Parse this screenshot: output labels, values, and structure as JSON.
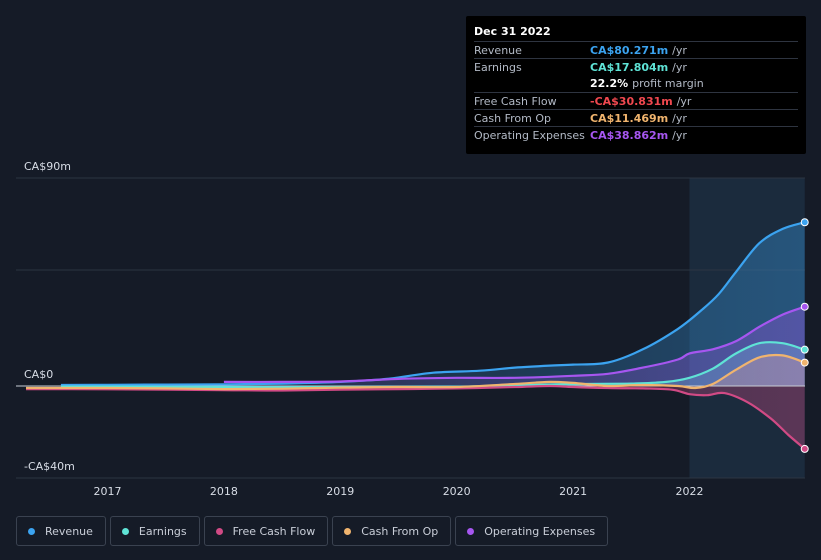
{
  "tooltip": {
    "date": "Dec 31 2022",
    "rows": [
      {
        "label": "Revenue",
        "value": "CA$80.271m",
        "unit": "/yr",
        "color": "#3ba3f0"
      },
      {
        "label": "Earnings",
        "value": "CA$17.804m",
        "unit": "/yr",
        "color": "#5fe3d6"
      },
      {
        "label": "",
        "value": "22.2%",
        "unit": "profit margin",
        "color": "#ffffff"
      },
      {
        "label": "Free Cash Flow",
        "value": "-CA$30.831m",
        "unit": "/yr",
        "color": "#f0484f"
      },
      {
        "label": "Cash From Op",
        "value": "CA$11.469m",
        "unit": "/yr",
        "color": "#f0b46e"
      },
      {
        "label": "Operating Expenses",
        "value": "CA$38.862m",
        "unit": "/yr",
        "color": "#a656f0"
      }
    ]
  },
  "legend": [
    {
      "label": "Revenue",
      "color": "#3ba3f0"
    },
    {
      "label": "Earnings",
      "color": "#5fe3d6"
    },
    {
      "label": "Free Cash Flow",
      "color": "#d14a85"
    },
    {
      "label": "Cash From Op",
      "color": "#f0b46e"
    },
    {
      "label": "Operating Expenses",
      "color": "#a656f0"
    }
  ],
  "chart_data": {
    "type": "area",
    "y_tick_labels": [
      "CA$90m",
      "CA$0",
      "-CA$40m"
    ],
    "ylim": [
      -40,
      90
    ],
    "xlim": [
      2016.3,
      2022.99
    ],
    "x_ticks": [
      2017,
      2018,
      2019,
      2020,
      2021,
      2022
    ],
    "x_tick_labels": [
      "2017",
      "2018",
      "2019",
      "2020",
      "2021",
      "2022"
    ],
    "highlight_range": [
      2022.0,
      2022.99
    ],
    "grid": true,
    "series": [
      {
        "name": "Revenue",
        "color": "#3ba3f0",
        "x": [
          2016.6,
          2017.0,
          2017.5,
          2018.0,
          2018.5,
          2019.0,
          2019.4,
          2019.8,
          2020.2,
          2020.5,
          2020.8,
          2021.0,
          2021.3,
          2021.6,
          2021.9,
          2022.1,
          2022.25,
          2022.4,
          2022.6,
          2022.8,
          2022.99
        ],
        "values": [
          0.5,
          0.6,
          0.7,
          0.8,
          1.2,
          2.0,
          3.5,
          6.5,
          7.5,
          9.0,
          10.0,
          10.5,
          11.5,
          18.0,
          28.0,
          37.0,
          45.0,
          56.0,
          70.0,
          77.0,
          80.271
        ]
      },
      {
        "name": "Earnings",
        "color": "#5fe3d6",
        "x": [
          2016.6,
          2017.0,
          2017.5,
          2018.0,
          2018.5,
          2019.0,
          2019.5,
          2020.0,
          2020.5,
          2021.0,
          2021.5,
          2021.8,
          2022.0,
          2022.2,
          2022.4,
          2022.6,
          2022.8,
          2022.99
        ],
        "values": [
          -0.3,
          -0.3,
          -0.4,
          -0.5,
          -0.6,
          -0.5,
          -0.4,
          -0.3,
          0.3,
          1.0,
          1.2,
          2.0,
          4.0,
          8.5,
          16.0,
          21.0,
          21.0,
          17.804
        ]
      },
      {
        "name": "Free Cash Flow",
        "color": "#d14a85",
        "x": [
          2016.3,
          2017.0,
          2017.5,
          2018.0,
          2018.5,
          2019.0,
          2019.5,
          2020.0,
          2020.5,
          2020.8,
          2021.0,
          2021.3,
          2021.6,
          2021.85,
          2022.0,
          2022.15,
          2022.3,
          2022.5,
          2022.7,
          2022.85,
          2022.99
        ],
        "values": [
          -1.5,
          -1.6,
          -1.8,
          -2.0,
          -2.2,
          -1.8,
          -1.5,
          -1.2,
          -0.5,
          0.0,
          -0.5,
          -1.0,
          -1.2,
          -1.8,
          -4.0,
          -4.5,
          -3.5,
          -8.0,
          -16.0,
          -24.0,
          -30.831
        ]
      },
      {
        "name": "Cash From Op",
        "color": "#f0b46e",
        "x": [
          2016.3,
          2017.0,
          2017.5,
          2018.0,
          2018.5,
          2019.0,
          2019.5,
          2020.0,
          2020.5,
          2020.8,
          2021.0,
          2021.3,
          2021.6,
          2021.9,
          2022.05,
          2022.2,
          2022.4,
          2022.6,
          2022.8,
          2022.99
        ],
        "values": [
          -1.0,
          -1.0,
          -1.2,
          -1.5,
          -1.3,
          -0.8,
          -0.5,
          -0.5,
          1.0,
          2.0,
          1.5,
          0.0,
          0.5,
          0.0,
          -1.0,
          1.0,
          8.0,
          14.0,
          15.0,
          11.469
        ]
      },
      {
        "name": "Operating Expenses",
        "color": "#a656f0",
        "x": [
          2018.0,
          2018.5,
          2019.0,
          2019.5,
          2020.0,
          2020.5,
          2021.0,
          2021.3,
          2021.6,
          2021.9,
          2022.0,
          2022.2,
          2022.4,
          2022.6,
          2022.8,
          2022.99
        ],
        "values": [
          2.0,
          2.0,
          2.2,
          3.5,
          4.0,
          4.0,
          5.0,
          6.0,
          9.0,
          13.0,
          16.0,
          18.0,
          22.0,
          29.0,
          35.0,
          38.862
        ]
      }
    ]
  }
}
